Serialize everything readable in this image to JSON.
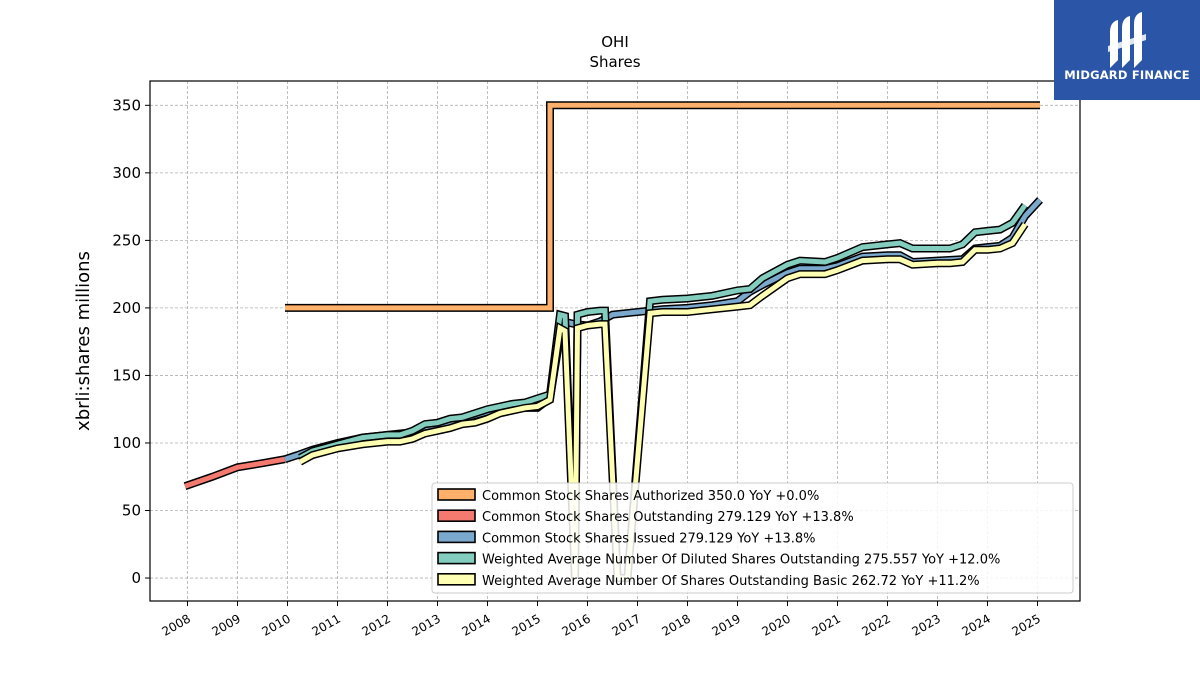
{
  "brand": {
    "name": "MIDGARD FINANCE"
  },
  "chart_data": {
    "type": "line",
    "title": "OHI",
    "subtitle": "Shares",
    "ylabel": "xbrli:shares millions",
    "xlabel": "",
    "xlim": [
      2007.25,
      2025.85
    ],
    "ylim": [
      -17,
      368
    ],
    "yticks": [
      0,
      50,
      100,
      150,
      200,
      250,
      300,
      350
    ],
    "xticks": [
      "2008",
      "2009",
      "2010",
      "2011",
      "2012",
      "2013",
      "2014",
      "2015",
      "2016",
      "2017",
      "2018",
      "2019",
      "2020",
      "2021",
      "2022",
      "2023",
      "2024",
      "2025"
    ],
    "grid": true,
    "legend_position": "lower-right",
    "series": [
      {
        "name": "Common Stock Shares Authorized",
        "legend": "Common Stock Shares Authorized  350.0 YoY +0.0%",
        "color": "#ffb06b",
        "points": [
          [
            2009.95,
            200
          ],
          [
            2015.25,
            200
          ],
          [
            2015.25,
            350
          ],
          [
            2016.0,
            350
          ],
          [
            2017.0,
            350
          ],
          [
            2018.0,
            350
          ],
          [
            2019.0,
            350
          ],
          [
            2020.0,
            350
          ],
          [
            2021.0,
            350
          ],
          [
            2022.0,
            350
          ],
          [
            2023.0,
            350
          ],
          [
            2024.0,
            350
          ],
          [
            2025.05,
            350
          ]
        ]
      },
      {
        "name": "Common Stock Shares Outstanding",
        "legend": "Common Stock Shares Outstanding  279.129 YoY +13.8%",
        "color": "#f4796f",
        "points": [
          [
            2007.95,
            68
          ],
          [
            2008.5,
            75
          ],
          [
            2009.0,
            82
          ],
          [
            2009.5,
            85
          ],
          [
            2009.95,
            88
          ]
        ]
      },
      {
        "name": "Common Stock Shares Issued",
        "legend": "Common Stock Shares Issued  279.129 YoY +13.8%",
        "color": "#7ba8cd",
        "points": [
          [
            2009.95,
            88
          ],
          [
            2010.2,
            91
          ],
          [
            2010.5,
            95
          ],
          [
            2011.0,
            100
          ],
          [
            2011.5,
            104
          ],
          [
            2012.0,
            106
          ],
          [
            2012.5,
            108
          ],
          [
            2012.75,
            112
          ],
          [
            2013.0,
            113
          ],
          [
            2013.5,
            118
          ],
          [
            2014.0,
            123
          ],
          [
            2014.5,
            126
          ],
          [
            2015.0,
            126
          ],
          [
            2015.25,
            133
          ],
          [
            2015.5,
            190
          ],
          [
            2015.75,
            188
          ],
          [
            2016.0,
            187
          ],
          [
            2016.25,
            190
          ],
          [
            2016.5,
            195
          ],
          [
            2016.75,
            196
          ],
          [
            2017.0,
            197
          ],
          [
            2017.25,
            198
          ],
          [
            2017.5,
            199
          ],
          [
            2018.0,
            200
          ],
          [
            2018.5,
            202
          ],
          [
            2019.0,
            205
          ],
          [
            2019.25,
            212
          ],
          [
            2019.5,
            217
          ],
          [
            2020.0,
            226
          ],
          [
            2020.25,
            229
          ],
          [
            2020.75,
            229
          ],
          [
            2021.0,
            231
          ],
          [
            2021.5,
            238
          ],
          [
            2022.0,
            239
          ],
          [
            2022.25,
            239
          ],
          [
            2022.5,
            234
          ],
          [
            2023.0,
            235
          ],
          [
            2023.5,
            236
          ],
          [
            2023.75,
            244
          ],
          [
            2024.0,
            245
          ],
          [
            2024.25,
            246
          ],
          [
            2024.5,
            252
          ],
          [
            2024.75,
            268
          ],
          [
            2025.05,
            280
          ]
        ]
      },
      {
        "name": "Weighted Average Number Of Diluted Shares Outstanding",
        "legend": "Weighted Average Number Of Diluted Shares Outstanding  275.557 YoY +12.0%",
        "color": "#82cdbd",
        "points": [
          [
            2010.25,
            89
          ],
          [
            2010.5,
            94
          ],
          [
            2011.0,
            99
          ],
          [
            2011.5,
            104
          ],
          [
            2012.0,
            106
          ],
          [
            2012.25,
            106
          ],
          [
            2012.5,
            109
          ],
          [
            2012.75,
            114
          ],
          [
            2013.0,
            115
          ],
          [
            2013.25,
            118
          ],
          [
            2013.5,
            119
          ],
          [
            2014.0,
            125
          ],
          [
            2014.5,
            129
          ],
          [
            2014.75,
            130
          ],
          [
            2015.0,
            133
          ],
          [
            2015.25,
            136
          ],
          [
            2015.45,
            195
          ],
          [
            2015.55,
            194
          ],
          [
            2015.75,
            0
          ],
          [
            2015.8,
            195
          ],
          [
            2016.0,
            197
          ],
          [
            2016.25,
            198
          ],
          [
            2016.35,
            198
          ],
          [
            2016.6,
            0
          ],
          [
            2016.8,
            0
          ],
          [
            2017.25,
            205
          ],
          [
            2017.5,
            206
          ],
          [
            2018.0,
            207
          ],
          [
            2018.5,
            209
          ],
          [
            2019.0,
            213
          ],
          [
            2019.25,
            214
          ],
          [
            2019.5,
            222
          ],
          [
            2020.0,
            232
          ],
          [
            2020.25,
            235
          ],
          [
            2020.75,
            234
          ],
          [
            2021.0,
            237
          ],
          [
            2021.5,
            245
          ],
          [
            2022.0,
            247
          ],
          [
            2022.25,
            248
          ],
          [
            2022.5,
            244
          ],
          [
            2023.0,
            244
          ],
          [
            2023.25,
            244
          ],
          [
            2023.5,
            247
          ],
          [
            2023.75,
            256
          ],
          [
            2024.0,
            257
          ],
          [
            2024.25,
            258
          ],
          [
            2024.5,
            263
          ],
          [
            2024.75,
            276
          ]
        ]
      },
      {
        "name": "Weighted Average Number Of Shares Outstanding Basic",
        "legend": "Weighted Average Number Of Shares Outstanding Basic  262.72 YoY +11.2%",
        "color": "#ffffb3",
        "points": [
          [
            2010.25,
            86
          ],
          [
            2010.5,
            91
          ],
          [
            2011.0,
            96
          ],
          [
            2011.5,
            99
          ],
          [
            2012.0,
            101
          ],
          [
            2012.25,
            101
          ],
          [
            2012.5,
            103
          ],
          [
            2012.75,
            107
          ],
          [
            2013.0,
            109
          ],
          [
            2013.25,
            111
          ],
          [
            2013.5,
            114
          ],
          [
            2013.75,
            115
          ],
          [
            2014.0,
            118
          ],
          [
            2014.25,
            122
          ],
          [
            2014.5,
            124
          ],
          [
            2014.75,
            126
          ],
          [
            2015.0,
            127
          ],
          [
            2015.25,
            132
          ],
          [
            2015.45,
            185
          ],
          [
            2015.55,
            183
          ],
          [
            2015.75,
            0
          ],
          [
            2015.8,
            185
          ],
          [
            2016.0,
            187
          ],
          [
            2016.25,
            188
          ],
          [
            2016.35,
            188
          ],
          [
            2016.6,
            0
          ],
          [
            2016.8,
            0
          ],
          [
            2017.25,
            196
          ],
          [
            2017.5,
            197
          ],
          [
            2018.0,
            197
          ],
          [
            2018.5,
            199
          ],
          [
            2019.0,
            201
          ],
          [
            2019.25,
            202
          ],
          [
            2019.5,
            209
          ],
          [
            2020.0,
            222
          ],
          [
            2020.25,
            225
          ],
          [
            2020.75,
            225
          ],
          [
            2021.0,
            228
          ],
          [
            2021.5,
            235
          ],
          [
            2022.0,
            236
          ],
          [
            2022.25,
            236
          ],
          [
            2022.5,
            232
          ],
          [
            2023.0,
            233
          ],
          [
            2023.25,
            233
          ],
          [
            2023.5,
            234
          ],
          [
            2023.75,
            243
          ],
          [
            2024.0,
            243
          ],
          [
            2024.25,
            244
          ],
          [
            2024.5,
            248
          ],
          [
            2024.75,
            262
          ]
        ]
      }
    ]
  }
}
